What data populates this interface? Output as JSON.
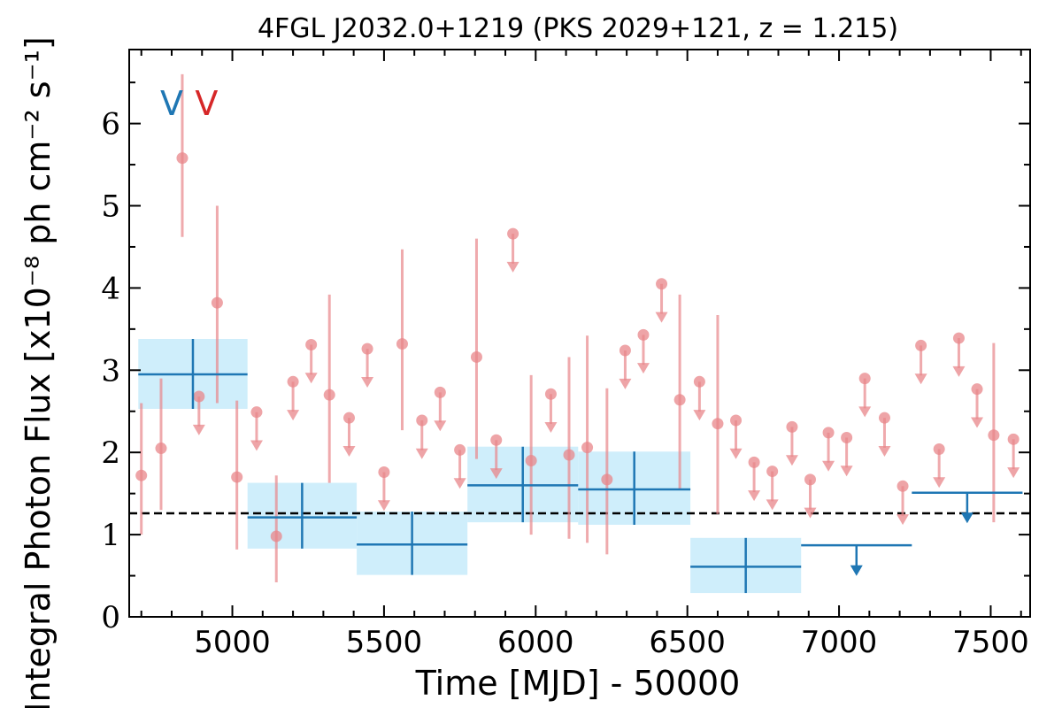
{
  "chart_data": {
    "type": "scatter",
    "title": "4FGL J2032.0+1219 (PKS 2029+121, z = 1.215)",
    "xlabel": "Time [MJD] - 50000",
    "ylabel": "Integral Photon Flux [x10⁻⁸ ph cm⁻² s⁻¹]",
    "xlim": [
      4660,
      7630
    ],
    "ylim": [
      0,
      6.9
    ],
    "x_ticks": [
      5000,
      5500,
      6000,
      6500,
      7000,
      7500
    ],
    "y_ticks": [
      0,
      1,
      2,
      3,
      4,
      5,
      6
    ],
    "x_tick_labels": [
      "5000",
      "5500",
      "6000",
      "6500",
      "7000",
      "7500"
    ],
    "y_tick_labels": [
      "0",
      "1",
      "2",
      "3",
      "4",
      "5",
      "6"
    ],
    "reference_level": 1.26,
    "colors": {
      "short_bin": "#e8868a",
      "long_bin": "#1f77b4",
      "long_bin_band": "#cfeefb",
      "reference_line": "#000000",
      "v_marker_1": "#1f77b4",
      "v_marker_2": "#d62728"
    },
    "markers": [
      {
        "label": "V",
        "x": 4800,
        "color": "#1f77b4"
      },
      {
        "label": "V",
        "x": 4915,
        "color": "#d62728"
      }
    ],
    "short_bin_series": {
      "detections": [
        {
          "x": 4700,
          "y": 1.72,
          "lo": 1.0,
          "hi": 2.6
        },
        {
          "x": 4765,
          "y": 2.05,
          "lo": 1.3,
          "hi": 2.9
        },
        {
          "x": 4835,
          "y": 5.58,
          "lo": 4.62,
          "hi": 6.6
        },
        {
          "x": 4950,
          "y": 3.82,
          "lo": 2.6,
          "hi": 5.0
        },
        {
          "x": 5015,
          "y": 1.7,
          "lo": 0.82,
          "hi": 2.63
        },
        {
          "x": 5145,
          "y": 0.98,
          "lo": 0.42,
          "hi": 1.72
        },
        {
          "x": 5320,
          "y": 2.7,
          "lo": 1.63,
          "hi": 3.92
        },
        {
          "x": 5560,
          "y": 3.32,
          "lo": 2.27,
          "hi": 4.47
        },
        {
          "x": 5805,
          "y": 3.16,
          "lo": 1.92,
          "hi": 4.6
        },
        {
          "x": 5985,
          "y": 1.9,
          "lo": 1.0,
          "hi": 2.94
        },
        {
          "x": 6110,
          "y": 1.97,
          "lo": 0.95,
          "hi": 3.16
        },
        {
          "x": 6170,
          "y": 2.06,
          "lo": 0.9,
          "hi": 3.42
        },
        {
          "x": 6235,
          "y": 1.67,
          "lo": 0.76,
          "hi": 2.78
        },
        {
          "x": 6475,
          "y": 2.64,
          "lo": 1.55,
          "hi": 3.92
        },
        {
          "x": 6600,
          "y": 2.35,
          "lo": 1.25,
          "hi": 3.67
        },
        {
          "x": 7510,
          "y": 2.21,
          "lo": 1.15,
          "hi": 3.33
        }
      ],
      "upper_limits": [
        {
          "x": 4890,
          "y": 2.68
        },
        {
          "x": 5080,
          "y": 2.49
        },
        {
          "x": 5200,
          "y": 2.86
        },
        {
          "x": 5260,
          "y": 3.31
        },
        {
          "x": 5385,
          "y": 2.42
        },
        {
          "x": 5445,
          "y": 3.26
        },
        {
          "x": 5500,
          "y": 1.76
        },
        {
          "x": 5625,
          "y": 2.39
        },
        {
          "x": 5685,
          "y": 2.73
        },
        {
          "x": 5750,
          "y": 2.03
        },
        {
          "x": 5870,
          "y": 2.15
        },
        {
          "x": 5925,
          "y": 4.66
        },
        {
          "x": 6050,
          "y": 2.71
        },
        {
          "x": 6295,
          "y": 3.24
        },
        {
          "x": 6355,
          "y": 3.43
        },
        {
          "x": 6415,
          "y": 4.05
        },
        {
          "x": 6540,
          "y": 2.86
        },
        {
          "x": 6660,
          "y": 2.39
        },
        {
          "x": 6720,
          "y": 1.88
        },
        {
          "x": 6780,
          "y": 1.77
        },
        {
          "x": 6845,
          "y": 2.31
        },
        {
          "x": 6905,
          "y": 1.67
        },
        {
          "x": 6965,
          "y": 2.24
        },
        {
          "x": 7025,
          "y": 2.18
        },
        {
          "x": 7085,
          "y": 2.9
        },
        {
          "x": 7150,
          "y": 2.42
        },
        {
          "x": 7210,
          "y": 1.59
        },
        {
          "x": 7270,
          "y": 3.3
        },
        {
          "x": 7330,
          "y": 2.04
        },
        {
          "x": 7395,
          "y": 3.39
        },
        {
          "x": 7455,
          "y": 2.77
        },
        {
          "x": 7575,
          "y": 2.16
        }
      ]
    },
    "long_bin_series": {
      "detections": [
        {
          "x0": 4690,
          "x1": 5050,
          "y": 2.95,
          "lo": 2.53,
          "hi": 3.38
        },
        {
          "x0": 5050,
          "x1": 5410,
          "y": 1.21,
          "lo": 0.83,
          "hi": 1.63
        },
        {
          "x0": 5410,
          "x1": 5775,
          "y": 0.88,
          "lo": 0.51,
          "hi": 1.28
        },
        {
          "x0": 5775,
          "x1": 6140,
          "y": 1.6,
          "lo": 1.15,
          "hi": 2.07
        },
        {
          "x0": 6140,
          "x1": 6510,
          "y": 1.55,
          "lo": 1.12,
          "hi": 2.01
        },
        {
          "x0": 6510,
          "x1": 6875,
          "y": 0.61,
          "lo": 0.29,
          "hi": 0.96
        }
      ],
      "upper_limits": [
        {
          "x0": 6875,
          "x1": 7240,
          "y": 0.87
        },
        {
          "x0": 7240,
          "x1": 7605,
          "y": 1.51
        }
      ]
    }
  }
}
